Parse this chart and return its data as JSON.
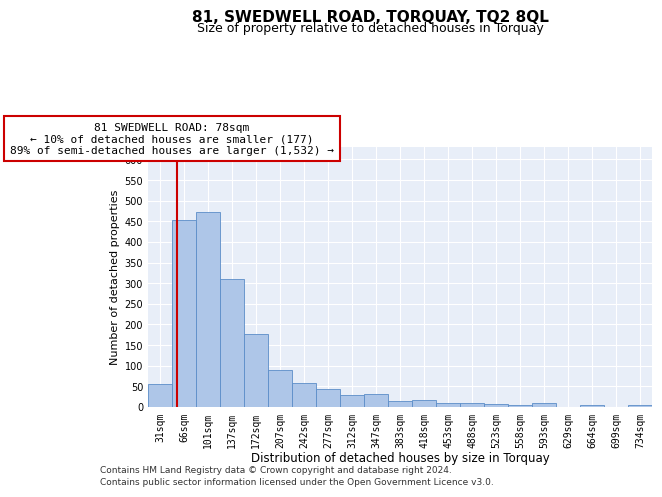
{
  "title1": "81, SWEDWELL ROAD, TORQUAY, TQ2 8QL",
  "title2": "Size of property relative to detached houses in Torquay",
  "xlabel": "Distribution of detached houses by size in Torquay",
  "ylabel": "Number of detached properties",
  "categories": [
    "31sqm",
    "66sqm",
    "101sqm",
    "137sqm",
    "172sqm",
    "207sqm",
    "242sqm",
    "277sqm",
    "312sqm",
    "347sqm",
    "383sqm",
    "418sqm",
    "453sqm",
    "488sqm",
    "523sqm",
    "558sqm",
    "593sqm",
    "629sqm",
    "664sqm",
    "699sqm",
    "734sqm"
  ],
  "values": [
    55,
    452,
    472,
    311,
    176,
    89,
    59,
    44,
    30,
    32,
    15,
    16,
    10,
    10,
    7,
    5,
    9,
    1,
    6,
    1,
    5
  ],
  "bar_color": "#aec6e8",
  "bar_edge_color": "#5b8dc8",
  "vline_color": "#cc0000",
  "vline_x": 0.72,
  "annotation_line1": "81 SWEDWELL ROAD: 78sqm",
  "annotation_line2": "← 10% of detached houses are smaller (177)",
  "annotation_line3": "89% of semi-detached houses are larger (1,532) →",
  "annotation_box_facecolor": "#ffffff",
  "annotation_box_edgecolor": "#cc0000",
  "ylim": [
    0,
    630
  ],
  "yticks": [
    0,
    50,
    100,
    150,
    200,
    250,
    300,
    350,
    400,
    450,
    500,
    550,
    600
  ],
  "footer1": "Contains HM Land Registry data © Crown copyright and database right 2024.",
  "footer2": "Contains public sector information licensed under the Open Government Licence v3.0.",
  "plot_bg_color": "#e8eef8",
  "grid_color": "#ffffff",
  "title1_fontsize": 11,
  "title2_fontsize": 9,
  "xlabel_fontsize": 8.5,
  "ylabel_fontsize": 8,
  "tick_fontsize": 7,
  "annotation_fontsize": 8,
  "footer_fontsize": 6.5
}
